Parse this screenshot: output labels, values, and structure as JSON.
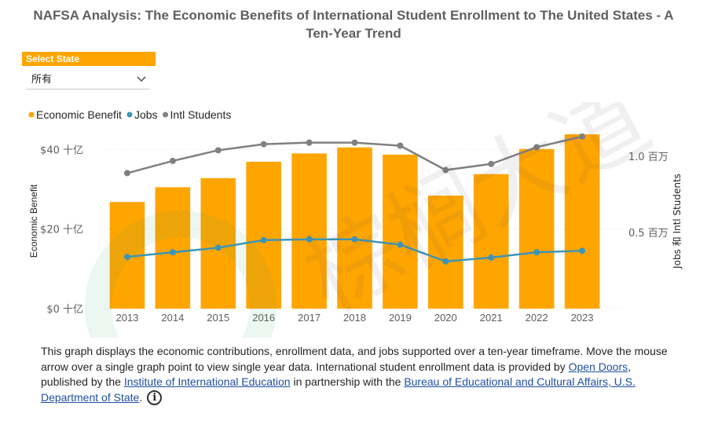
{
  "title": "NAFSA Analysis: The Economic Benefits of International Student Enrollment to The United States - A Ten-Year Trend",
  "slicer": {
    "header": "Select State",
    "value": "所有"
  },
  "watermark": "棕榈大道",
  "description": {
    "part1": "This graph displays the economic contributions, enrollment data, and jobs supported over a ten-year timeframe. Move the mouse arrow over a single graph point to view single year data. International student enrollment data is provided by ",
    "link1": "Open Doors",
    "part2": ", published by the ",
    "link2": "Institute of International Education",
    "part3": " in partnership with the ",
    "link3": "Bureau of Educational and Cultural Affairs, U.S. Department of State",
    "part4": "."
  },
  "chart_data": {
    "type": "bar",
    "categories": [
      "2013",
      "2014",
      "2015",
      "2016",
      "2017",
      "2018",
      "2019",
      "2020",
      "2021",
      "2022",
      "2023"
    ],
    "series": [
      {
        "name": "Economic Benefit",
        "kind": "bar",
        "axis": "left",
        "color": "#FFA500",
        "values": [
          26.8,
          30.5,
          32.8,
          36.9,
          39.0,
          40.5,
          38.7,
          28.4,
          33.8,
          40.1,
          43.8
        ]
      },
      {
        "name": "Jobs",
        "kind": "line",
        "axis": "right",
        "color": "#3E95B5",
        "values": [
          0.34,
          0.37,
          0.4,
          0.45,
          0.455,
          0.455,
          0.42,
          0.31,
          0.335,
          0.37,
          0.38
        ]
      },
      {
        "name": "Intl Students",
        "kind": "line",
        "axis": "right",
        "color": "#808080",
        "values": [
          0.89,
          0.97,
          1.04,
          1.08,
          1.09,
          1.09,
          1.07,
          0.91,
          0.95,
          1.06,
          1.13
        ]
      }
    ],
    "ylabel": "Economic Benefit",
    "y2label": "Jobs 和 Intl Students",
    "ylim": [
      0,
      44
    ],
    "y2lim": [
      0,
      1.15
    ],
    "yticks": [
      {
        "value": 0,
        "label": "$0 十亿"
      },
      {
        "value": 20,
        "label": "$20 十亿"
      },
      {
        "value": 40,
        "label": "$40 十亿"
      }
    ],
    "y2ticks": [
      {
        "value": 0.5,
        "label": "0.5 百万"
      },
      {
        "value": 1.0,
        "label": "1.0 百万"
      }
    ],
    "legend_position": "top-left",
    "grid": true
  }
}
